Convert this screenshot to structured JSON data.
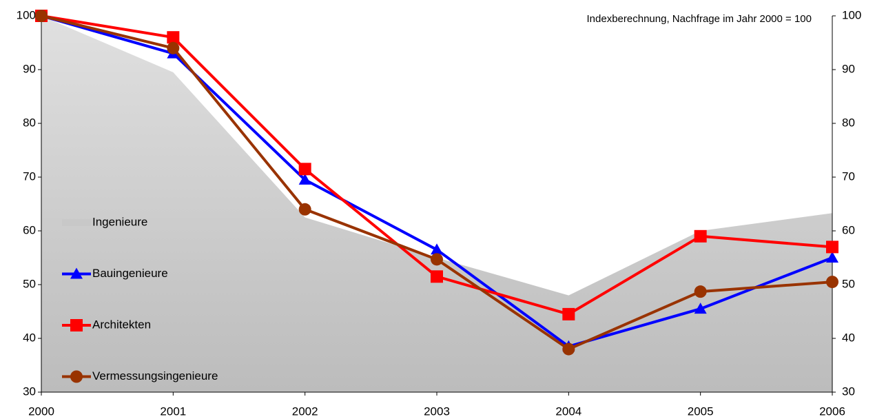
{
  "chart_data": {
    "type": "line",
    "annotation": "Indexberechnung, Nachfrage im Jahr 2000 = 100",
    "x": [
      2000,
      2001,
      2002,
      2003,
      2004,
      2005,
      2006
    ],
    "xlim": [
      2000,
      2006
    ],
    "xticks": [
      2000,
      2001,
      2002,
      2003,
      2004,
      2005,
      2006
    ],
    "ylim": [
      30,
      100
    ],
    "yticks": [
      30,
      40,
      50,
      60,
      70,
      80,
      90,
      100
    ],
    "y2lim": [
      30,
      100
    ],
    "y2ticks": [
      30,
      40,
      50,
      60,
      70,
      80,
      90,
      100
    ],
    "legend": "left",
    "series": [
      {
        "name": "Ingenieure",
        "color": "#c8c8c8",
        "style": "area",
        "values": [
          100,
          89.5,
          62.5,
          55,
          48,
          60,
          63.3
        ]
      },
      {
        "name": "Bauingenieure",
        "color": "#0000ff",
        "marker": "triangle",
        "values": [
          100,
          93,
          69.5,
          56.5,
          38.5,
          45.5,
          55
        ]
      },
      {
        "name": "Architekten",
        "color": "#ff0000",
        "marker": "square",
        "values": [
          100,
          96,
          71.5,
          51.5,
          44.5,
          59,
          57
        ]
      },
      {
        "name": "Vermessungsingenieure",
        "color": "#993300",
        "marker": "circle",
        "values": [
          100,
          94,
          64,
          54.7,
          38,
          48.7,
          50.5
        ]
      }
    ]
  }
}
